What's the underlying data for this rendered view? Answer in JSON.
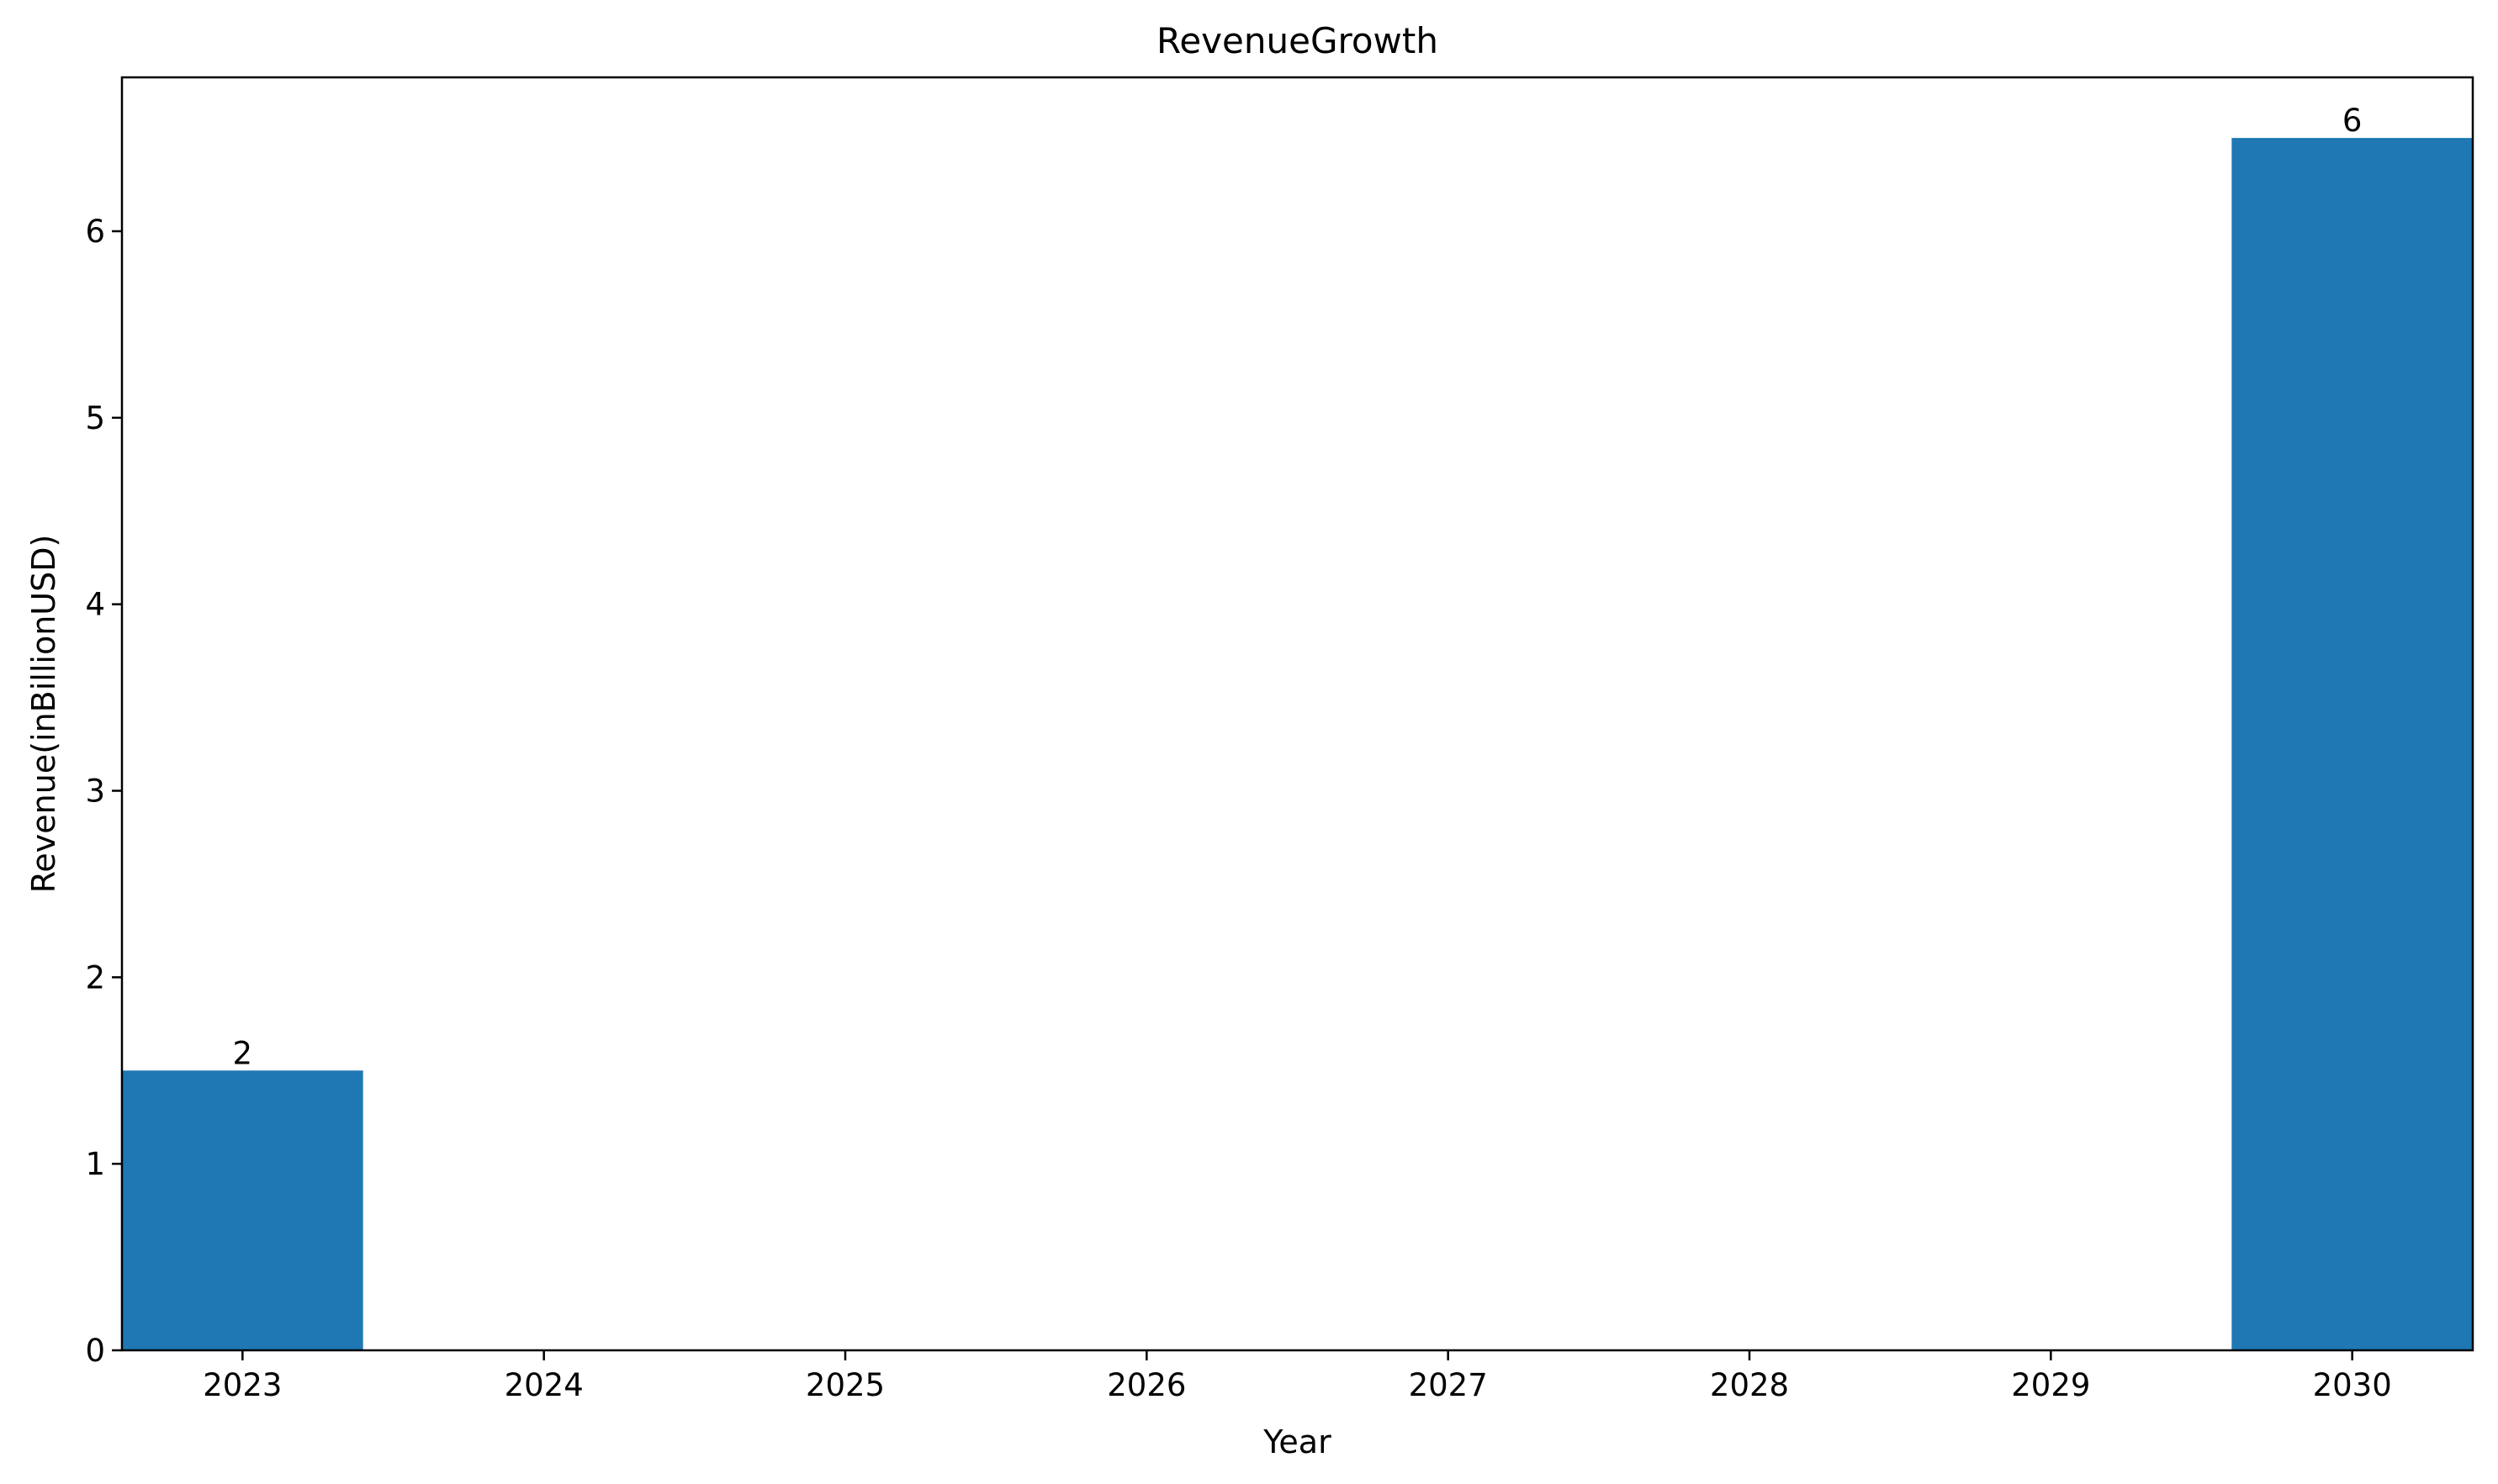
{
  "chart_data": {
    "type": "bar",
    "title": "RevenueGrowth",
    "xlabel": "Year",
    "ylabel": "Revenue(inBillionUSD)",
    "x": [
      2023,
      2030
    ],
    "values": [
      1.5,
      6.5
    ],
    "data_labels": [
      "2",
      "6"
    ],
    "x_ticks": [
      "2023",
      "2024",
      "2025",
      "2026",
      "2027",
      "2028",
      "2029",
      "2030"
    ],
    "y_ticks": [
      "0",
      "1",
      "2",
      "3",
      "4",
      "5",
      "6"
    ],
    "xlim": [
      2022.6,
      2030.4
    ],
    "ylim": [
      0,
      6.825
    ],
    "bar_color": "#1f77b4",
    "grid": false,
    "legend": false
  }
}
